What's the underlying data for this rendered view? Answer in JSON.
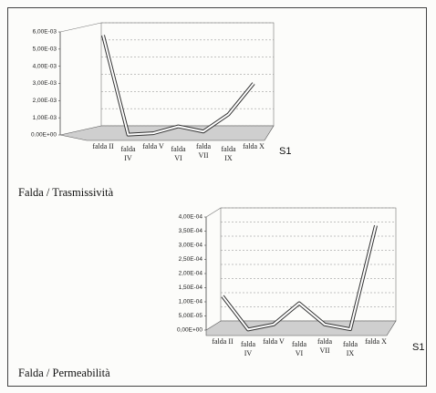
{
  "chart_data": [
    {
      "type": "line",
      "categories": [
        "falda II",
        "falda IV",
        "falda V",
        "falda VI",
        "falda VII",
        "falda IX",
        "falda X"
      ],
      "series": [
        {
          "name": "S1",
          "color": "#333333",
          "values": [
            0.0058,
            2e-05,
            0.0001,
            0.0005,
            0.0002,
            0.0012,
            0.003
          ]
        }
      ],
      "ylim": [
        0,
        0.006
      ],
      "yticks": [
        {
          "value": 0,
          "label": "0.00E+00"
        },
        {
          "value": 0.001,
          "label": "1,00E-03"
        },
        {
          "value": 0.002,
          "label": "2,00E-03"
        },
        {
          "value": 0.003,
          "label": "3,00E-03"
        },
        {
          "value": 0.004,
          "label": "4,00E-03"
        },
        {
          "value": 0.005,
          "label": "5,00E-03"
        },
        {
          "value": 0.006,
          "label": "6,00E-03"
        }
      ],
      "grid": true,
      "caption": "Falda / Trasmissività"
    },
    {
      "type": "line",
      "categories": [
        "falda II",
        "falda IV",
        "falda V",
        "falda VI",
        "falda VII",
        "falda IX",
        "falda X"
      ],
      "series": [
        {
          "name": "S1",
          "color": "#333333",
          "values": [
            0.00012,
            2e-06,
            2e-05,
            9.5e-05,
            2e-05,
            3e-06,
            0.00037
          ]
        }
      ],
      "ylim": [
        0,
        0.0004
      ],
      "yticks": [
        {
          "value": 0,
          "label": "0,00E+00"
        },
        {
          "value": 5e-05,
          "label": "5,00E-05"
        },
        {
          "value": 0.0001,
          "label": "1,00E-04"
        },
        {
          "value": 0.00015,
          "label": "1,50E-04"
        },
        {
          "value": 0.0002,
          "label": "2,00E-04"
        },
        {
          "value": 0.00025,
          "label": "2,50E-04"
        },
        {
          "value": 0.0003,
          "label": "3,00E-04"
        },
        {
          "value": 0.00035,
          "label": "3,50E-04"
        },
        {
          "value": 0.0004,
          "label": "4,00E-04"
        }
      ],
      "grid": true,
      "caption": "Falda / Permeabilità"
    }
  ]
}
